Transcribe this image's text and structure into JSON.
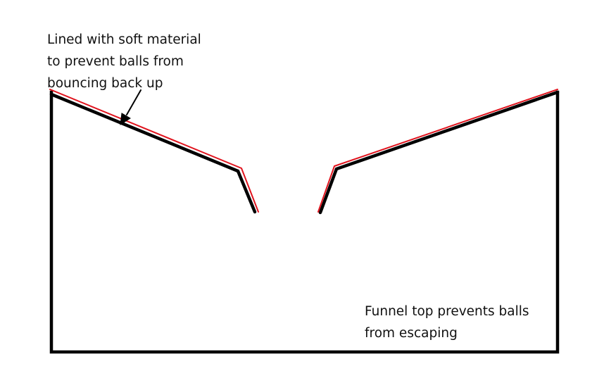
{
  "annotations": {
    "lining": {
      "lines": [
        "Lined with soft material",
        "to prevent balls from",
        "bouncing back up"
      ]
    },
    "funnel": {
      "lines": [
        "Funnel top prevents balls",
        "from escaping"
      ]
    }
  },
  "colors": {
    "outline": "#000000",
    "lining": "#e0141e",
    "text": "#111111",
    "background": "#ffffff"
  }
}
